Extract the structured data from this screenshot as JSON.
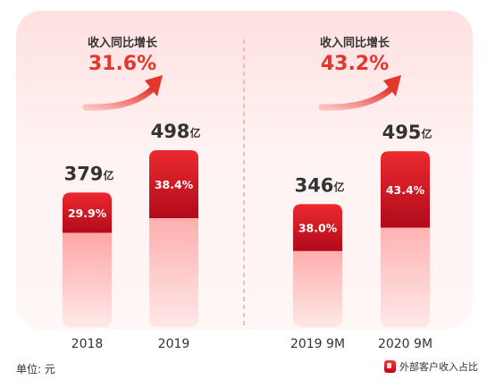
{
  "chart_data": {
    "type": "bar",
    "unit_suffix": "亿",
    "groups": [
      {
        "growth_label": "收入同比增长",
        "growth_value": "31.6%",
        "bars": [
          {
            "category": "2018",
            "total": 379,
            "total_label": "379",
            "external_share": 29.9,
            "external_share_label": "29.9%"
          },
          {
            "category": "2019",
            "total": 498,
            "total_label": "498",
            "external_share": 38.4,
            "external_share_label": "38.4%"
          }
        ]
      },
      {
        "growth_label": "收入同比增长",
        "growth_value": "43.2%",
        "bars": [
          {
            "category": "2019 9M",
            "total": 346,
            "total_label": "346",
            "external_share": 38.0,
            "external_share_label": "38.0%"
          },
          {
            "category": "2020 9M",
            "total": 495,
            "total_label": "495",
            "external_share": 43.4,
            "external_share_label": "43.4%"
          }
        ]
      }
    ],
    "colors": {
      "accent": "#e4362b",
      "bar_dark_top": "#e8202a",
      "bar_dark_bottom": "#b40c1d",
      "bar_light_top": "#ff8f8f",
      "bar_light_bottom": "#ffe4e4",
      "panel": "#fff3f3",
      "text": "#333333"
    }
  },
  "footer": {
    "unit_label": "单位: 元",
    "legend_label": "外部客户收入占比",
    "legend_icon": "red-square-icon"
  }
}
